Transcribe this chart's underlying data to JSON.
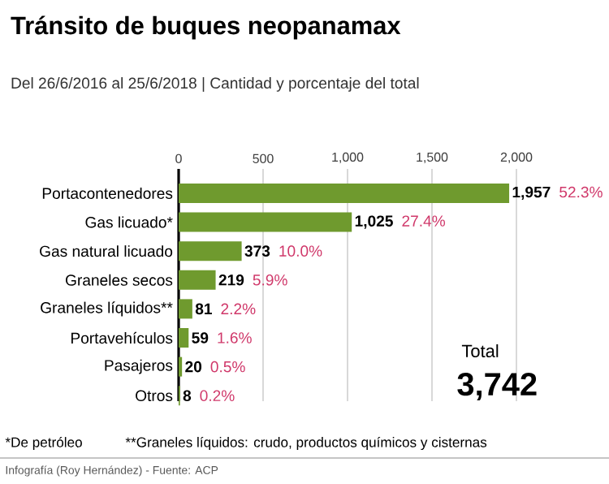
{
  "chart_data": {
    "type": "bar",
    "orientation": "horizontal",
    "title": "Tránsito de buques neopanamax",
    "subtitle": "Del 26/6/2016 al 25/6/2018  |  Cantidad y porcentaje del total",
    "categories": [
      "Portacontenedores",
      "Gas licuado*",
      "Gas natural licuado",
      "Graneles secos",
      "Graneles líquidos**",
      "Portavehículos",
      "Pasajeros",
      "Otros"
    ],
    "values": [
      1957,
      1025,
      373,
      219,
      81,
      59,
      20,
      8
    ],
    "value_labels": [
      "1,957",
      "1,025",
      "373",
      "219",
      "81",
      "59",
      "20",
      "8"
    ],
    "color": "#6f9a2e",
    "xlim": [
      0,
      2000
    ],
    "xticks": [
      0,
      500,
      {
        "value": 1000,
        "label": "1,000"
      },
      {
        "value": 1500,
        "label": "1,500"
      },
      {
        "value": 2000,
        "label": "2,000"
      }
    ],
    "grid": "x",
    "annotations": [
      "52.3%",
      "27.4%",
      "10.0%",
      "5.9%",
      "2.2%",
      "1.6%",
      "0.5%",
      "0.2%",
      "Total",
      "3,742",
      "*De petróleo",
      "**Graneles líquidos: crudo, productos químicos y cisternas",
      "Infografía (Roy Hernández) - Fuente: ACP"
    ]
  }
}
